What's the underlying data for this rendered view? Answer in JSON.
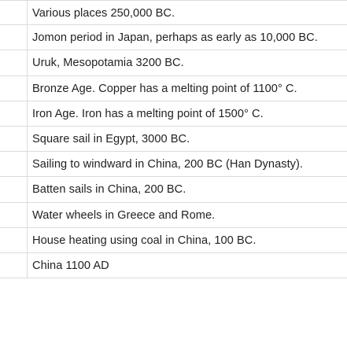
{
  "rows": [
    "Various places 250,000 BC.",
    "Jomon period in Japan, perhaps as early as 10,000 BC.",
    "Uruk, Mesopotamia 3200 BC.",
    "Bronze Age. Copper has a melting point of 1100° C.",
    "Iron Age. Iron has a melting point of 1500°  C.",
    "Square sail in Egypt, 3000 BC.",
    "Sailing to windward in China, 200 BC (Han Dynasty).",
    "Batten sails in China, 200 BC.",
    "Water wheels in Greece and Rome.",
    "House heating using coal in China, 100 BC.",
    "China 1100 AD"
  ]
}
